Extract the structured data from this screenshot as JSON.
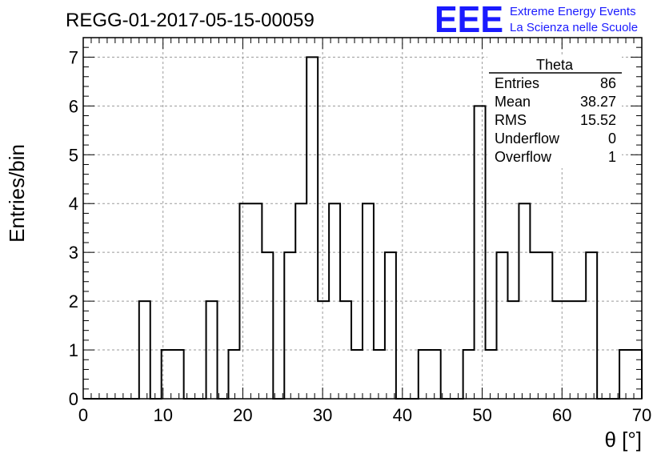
{
  "chart_data": {
    "type": "bar",
    "title": "REGG-01-2017-05-15-00059",
    "xlabel": "θ [°]",
    "ylabel": "Entries/bin",
    "xlim": [
      0,
      70
    ],
    "ylim": [
      0,
      7.4
    ],
    "x_ticks": [
      0,
      10,
      20,
      30,
      40,
      50,
      60,
      70
    ],
    "y_ticks": [
      0,
      1,
      2,
      3,
      4,
      5,
      6,
      7
    ],
    "grid": true,
    "bin_width": 1.4,
    "values": [
      0,
      0,
      0,
      0,
      0,
      2,
      0,
      1,
      1,
      0,
      0,
      2,
      0,
      1,
      4,
      4,
      3,
      0,
      3,
      4,
      7,
      2,
      4,
      2,
      1,
      4,
      1,
      3,
      0,
      0,
      1,
      1,
      0,
      0,
      1,
      6,
      1,
      3,
      2,
      4,
      3,
      3,
      2,
      2,
      2,
      3,
      0,
      0,
      1,
      1
    ],
    "stats": {
      "name": "Theta",
      "rows": [
        {
          "label": "Entries",
          "value": "86"
        },
        {
          "label": "Mean",
          "value": "38.27"
        },
        {
          "label": "RMS",
          "value": "15.52"
        },
        {
          "label": "Underflow",
          "value": "0"
        },
        {
          "label": "Overflow",
          "value": "1"
        }
      ]
    }
  },
  "logo": {
    "mark": "EEE",
    "line1": "Extreme Energy Events",
    "line2": "La Scienza nelle Scuole",
    "color": "#1a1aff"
  }
}
